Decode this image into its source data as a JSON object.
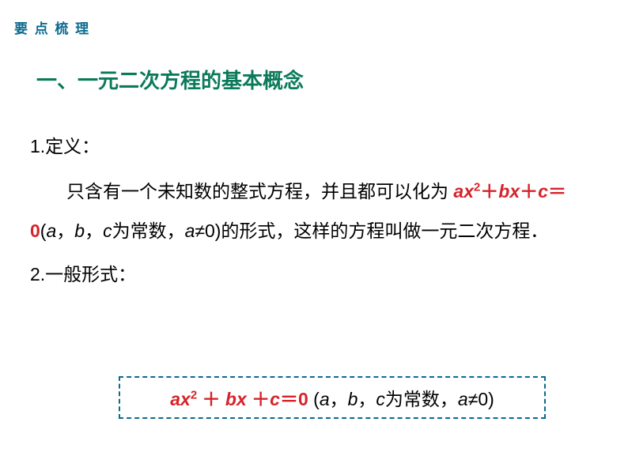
{
  "colors": {
    "header": "#0b6b8f",
    "title": "#0b7a5a",
    "body": "#000000",
    "red": "#d6232a",
    "box_border": "#0b6b8f"
  },
  "fonts": {
    "header_size": 17,
    "title_size": 26,
    "body_size": 23
  },
  "header": "要 点 梳 理",
  "title": "一、一元二次方程的基本概念",
  "s1": {
    "label": "1.定义：",
    "pre": "只含有一个未知数的整式方程，并且都可以化为",
    "eq_a": "a",
    "eq_x": "x",
    "eq_sup": "2",
    "eq_plus1": "＋",
    "eq_b": "b",
    "eq_x2": "x",
    "eq_plus2": "＋",
    "eq_c": "c",
    "eq_eq": "＝",
    "eq_zero": "0",
    "post1": "(",
    "pa": "a",
    "pc1": "，",
    "pb": "b",
    "pc2": "，",
    "pc": "c",
    "pmid": "为常数，",
    "pane": "a≠",
    "pzero": "0)的形式，这样的方程叫做一元二次方程．"
  },
  "s2": {
    "label": "2.一般形式：",
    "box": {
      "a": "a",
      "x": "x",
      "sup": "2",
      "plus1": " ＋ ",
      "b": "b",
      "x2": "x",
      "plus2": " ＋",
      "c": "c",
      "eqz": "＝0 ",
      "open": "(",
      "pa": "a",
      "c1": "，",
      "pb": "b",
      "c2": "，",
      "pc": "c",
      "mid": "为常数，",
      "ane": "a≠",
      "close": "0)"
    }
  }
}
